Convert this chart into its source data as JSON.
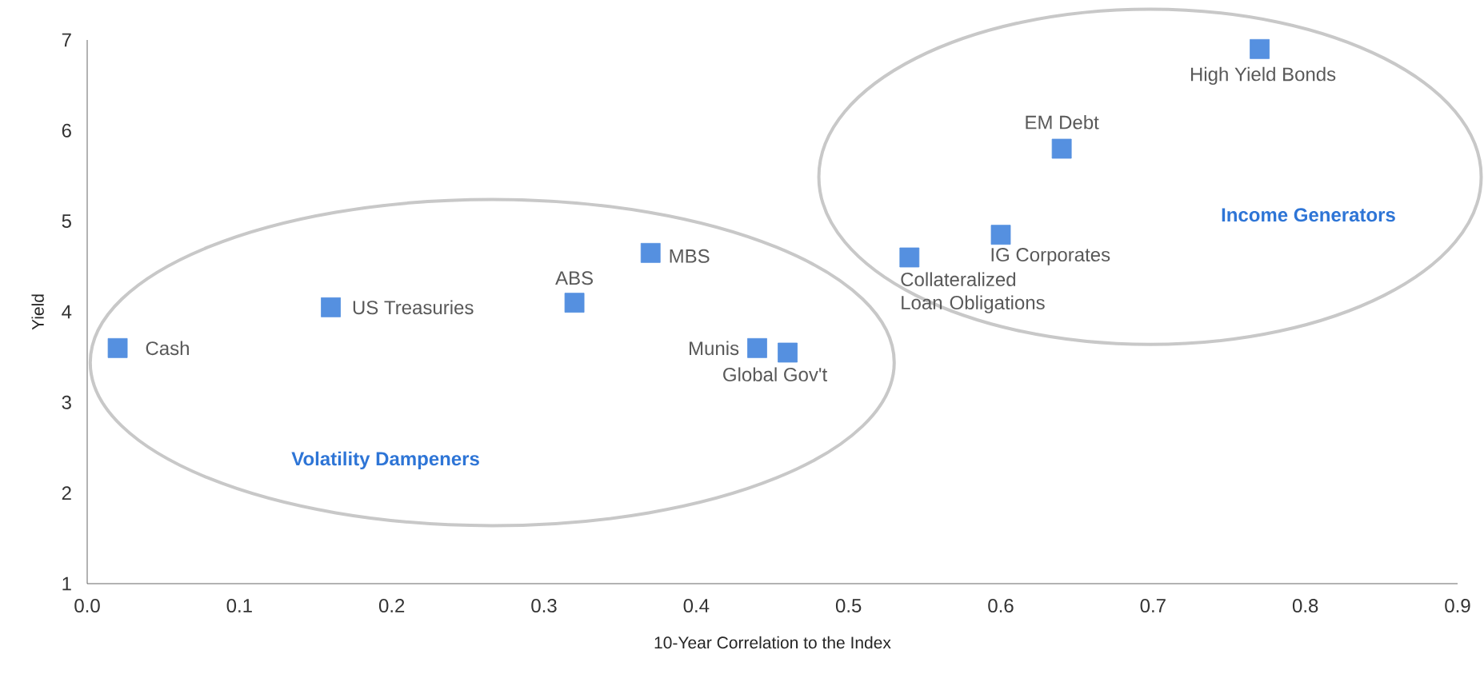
{
  "chart_data": {
    "type": "scatter",
    "xlabel": "10-Year Correlation to the Index",
    "ylabel": "Yield",
    "xlim": [
      0,
      0.9
    ],
    "ylim": [
      1,
      7
    ],
    "xticks": [
      {
        "value": 0,
        "label": "0.0"
      },
      {
        "value": 0.1,
        "label": "0.1"
      },
      {
        "value": 0.2,
        "label": "0.2"
      },
      {
        "value": 0.3,
        "label": "0.3"
      },
      {
        "value": 0.4,
        "label": "0.4"
      },
      {
        "value": 0.5,
        "label": "0.5"
      },
      {
        "value": 0.6,
        "label": "0.6"
      },
      {
        "value": 0.7,
        "label": "0.7"
      },
      {
        "value": 0.8,
        "label": "0.8"
      },
      {
        "value": 0.9,
        "label": "0.9"
      }
    ],
    "yticks": [
      1,
      2,
      3,
      4,
      5,
      6,
      7
    ],
    "marker": "square",
    "grid": false,
    "legend": false,
    "annotations": [
      "Volatility Dampeners",
      "Income Generators"
    ],
    "series": [
      {
        "name": "Cash",
        "color": "#5590e0",
        "x": [
          0.02
        ],
        "values": [
          3.6
        ]
      },
      {
        "name": "US Treasuries",
        "color": "#5590e0",
        "x": [
          0.16
        ],
        "values": [
          4.05
        ]
      },
      {
        "name": "ABS",
        "color": "#5590e0",
        "x": [
          0.32
        ],
        "values": [
          4.1
        ]
      },
      {
        "name": "MBS",
        "color": "#5590e0",
        "x": [
          0.37
        ],
        "values": [
          4.65
        ]
      },
      {
        "name": "Munis",
        "color": "#5590e0",
        "x": [
          0.44
        ],
        "values": [
          3.6
        ]
      },
      {
        "name": "Global Gov't",
        "color": "#5590e0",
        "x": [
          0.46
        ],
        "values": [
          3.55
        ]
      },
      {
        "name": "Collateralized Loan Obligations",
        "color": "#5590e0",
        "x": [
          0.54
        ],
        "values": [
          4.6
        ]
      },
      {
        "name": "IG Corporates",
        "color": "#5590e0",
        "x": [
          0.6
        ],
        "values": [
          4.85
        ]
      },
      {
        "name": "EM Debt",
        "color": "#5590e0",
        "x": [
          0.64
        ],
        "values": [
          5.8
        ]
      },
      {
        "name": "High Yield Bonds",
        "color": "#5590e0",
        "x": [
          0.77
        ],
        "values": [
          6.9
        ]
      }
    ]
  }
}
